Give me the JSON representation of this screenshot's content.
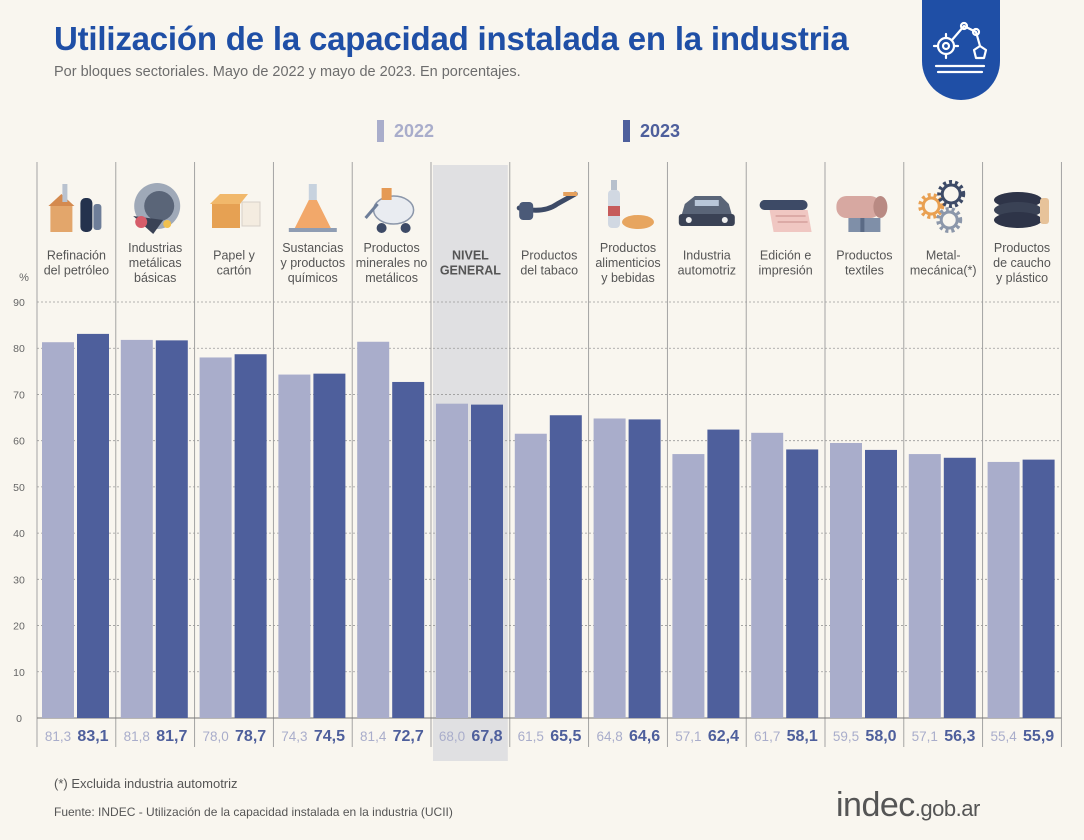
{
  "header": {
    "title": "Utilización de la capacidad instalada en la industria",
    "subtitle": "Por bloques sectoriales. Mayo de 2022 y mayo de 2023. En porcentajes."
  },
  "badge": {
    "icon": "industrial-robot-icon"
  },
  "legend": {
    "label_2022": "2022",
    "label_2023": "2023"
  },
  "colors": {
    "bar_2022": "#a9adcb",
    "bar_2023": "#4e5f9c",
    "highlight_bg": "#dcdcdf",
    "title": "#1f4fa6",
    "axis_text": "#666666"
  },
  "chart_data": {
    "type": "bar",
    "y_unit_label": "%",
    "ylim": [
      0,
      90
    ],
    "yticks": [
      0,
      10,
      20,
      30,
      40,
      50,
      60,
      70,
      80,
      90
    ],
    "highlighted_category": "NIVEL GENERAL",
    "categories": [
      {
        "label": [
          "Refinación",
          "del petróleo"
        ],
        "icon": "oil-refinery-icon",
        "v2022": 81.3,
        "v2023": 83.1,
        "t2022": "81,3",
        "t2023": "83,1"
      },
      {
        "label": [
          "Industrias",
          "metálicas",
          "básicas"
        ],
        "icon": "steel-ladle-icon",
        "v2022": 81.8,
        "v2023": 81.7,
        "t2022": "81,8",
        "t2023": "81,7"
      },
      {
        "label": [
          "Papel y",
          "cartón"
        ],
        "icon": "cardboard-box-icon",
        "v2022": 78.0,
        "v2023": 78.7,
        "t2022": "78,0",
        "t2023": "78,7"
      },
      {
        "label": [
          "Sustancias",
          "y productos",
          "químicos"
        ],
        "icon": "flask-icon",
        "v2022": 74.3,
        "v2023": 74.5,
        "t2022": "74,3",
        "t2023": "74,5"
      },
      {
        "label": [
          "Productos",
          "minerales no",
          "metálicos"
        ],
        "icon": "cement-mixer-icon",
        "v2022": 81.4,
        "v2023": 72.7,
        "t2022": "81,4",
        "t2023": "72,7"
      },
      {
        "label": [
          "NIVEL",
          "GENERAL"
        ],
        "icon": "",
        "v2022": 68.0,
        "v2023": 67.8,
        "t2022": "68,0",
        "t2023": "67,8",
        "highlight": true
      },
      {
        "label": [
          "Productos",
          "del tabaco"
        ],
        "icon": "tobacco-pipe-icon",
        "v2022": 61.5,
        "v2023": 65.5,
        "t2022": "61,5",
        "t2023": "65,5"
      },
      {
        "label": [
          "Productos",
          "alimenticios",
          "y bebidas"
        ],
        "icon": "bottle-and-bread-icon",
        "v2022": 64.8,
        "v2023": 64.6,
        "t2022": "64,8",
        "t2023": "64,6"
      },
      {
        "label": [
          "Industria",
          "automotriz"
        ],
        "icon": "car-icon",
        "v2022": 57.1,
        "v2023": 62.4,
        "t2022": "57,1",
        "t2023": "62,4"
      },
      {
        "label": [
          "Edición e",
          "impresión"
        ],
        "icon": "paper-roll-icon",
        "v2022": 61.7,
        "v2023": 58.1,
        "t2022": "61,7",
        "t2023": "58,1"
      },
      {
        "label": [
          "Productos",
          "textiles"
        ],
        "icon": "fabric-roll-icon",
        "v2022": 59.5,
        "v2023": 58.0,
        "t2022": "59,5",
        "t2023": "58,0"
      },
      {
        "label": [
          "Metal-",
          "mecánica(*)"
        ],
        "icon": "gears-icon",
        "v2022": 57.1,
        "v2023": 56.3,
        "t2022": "57,1",
        "t2023": "56,3"
      },
      {
        "label": [
          "Productos",
          "de caucho",
          "y plástico"
        ],
        "icon": "tires-icon",
        "v2022": 55.4,
        "v2023": 55.9,
        "t2022": "55,4",
        "t2023": "55,9"
      }
    ]
  },
  "footer": {
    "note": "(*) Excluida industria automotriz",
    "source": "Fuente: INDEC - Utilización de la capacidad instalada en la industria (UCII)",
    "brand_main": "indec",
    "brand_domain": ".gob.ar"
  }
}
